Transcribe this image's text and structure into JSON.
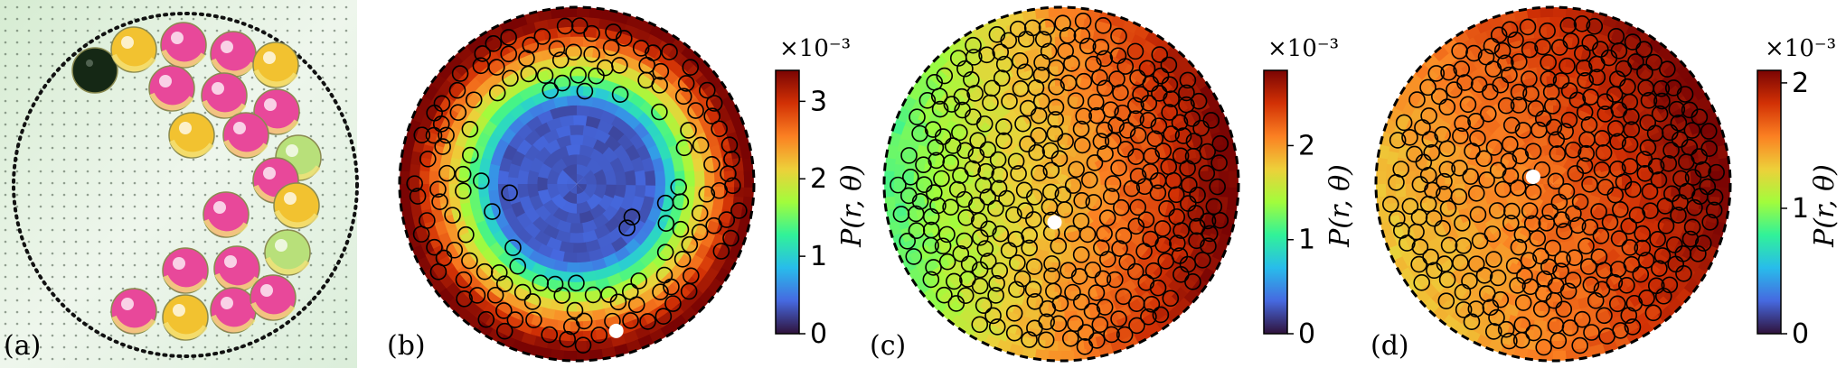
{
  "figure": {
    "photo_panel": {
      "label": "(a)"
    },
    "panels": [
      {
        "label": "(b)",
        "pattern": "ring",
        "colorbar": {
          "label": "P(r, θ)",
          "exponent": "×10⁻³",
          "ticks": [
            "0",
            "1",
            "2",
            "3"
          ],
          "vmax": 3.4
        },
        "grains": 150,
        "intruder": {
          "angle_deg": 75,
          "radius_frac": 0.86
        }
      },
      {
        "label": "(c)",
        "pattern": "gradient-right",
        "colorbar": {
          "label": "P(r, θ)",
          "exponent": "×10⁻³",
          "ticks": [
            "0",
            "1",
            "2"
          ],
          "vmax": 2.8
        },
        "grains": 330,
        "intruder": {
          "angle_deg": 100,
          "radius_frac": 0.22
        }
      },
      {
        "label": "(d)",
        "pattern": "gradient-diag",
        "colorbar": {
          "label": "P(r, θ)",
          "exponent": "×10⁻³",
          "ticks": [
            "0",
            "1",
            "2"
          ],
          "vmax": 2.1
        },
        "grains": 330,
        "intruder": {
          "angle_deg": 200,
          "radius_frac": 0.12
        }
      }
    ]
  },
  "colors": {
    "colormap": [
      "#30123b",
      "#4669e0",
      "#28bceb",
      "#31f299",
      "#a2fc3c",
      "#edd03a",
      "#fb8022",
      "#d23105",
      "#7a0403"
    ],
    "boundary": "#000000",
    "intruder": "#ffffff",
    "ball_pink": "#e8489a",
    "ball_yellow": "#f2c230",
    "ball_green": "#b8e07a",
    "ball_black": "#152815"
  }
}
